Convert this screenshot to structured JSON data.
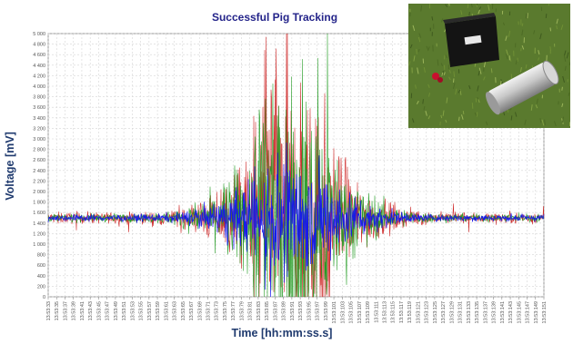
{
  "chart_data": {
    "type": "line",
    "title": "Successful Pig Tracking",
    "xlabel": "Time [hh:mm:ss.s]",
    "ylabel": "Voltage [mV]",
    "ylim": [
      0,
      5000
    ],
    "yticks": [
      0,
      200,
      400,
      600,
      800,
      1000,
      1200,
      1400,
      1600,
      1800,
      2000,
      2200,
      2400,
      2600,
      2800,
      3000,
      3200,
      3400,
      3600,
      3800,
      4000,
      4200,
      4400,
      4600,
      4800,
      5000
    ],
    "ytick_labels": [
      "0",
      "200",
      "400",
      "600",
      "800",
      "1 000",
      "1 200",
      "1 400",
      "1 600",
      "1 800",
      "2 000",
      "2 200",
      "2 400",
      "2 600",
      "2 800",
      "3 000",
      "3 200",
      "3 400",
      "3 600",
      "3 800",
      "4 000",
      "4 200",
      "4 400",
      "4 600",
      "4 800",
      "5 000"
    ],
    "xtick_labels": [
      "13:53:33",
      "13:53:35",
      "13:53:37",
      "13:53:39",
      "13:53:41",
      "13:53:43",
      "13:53:45",
      "13:53:47",
      "13:53:49",
      "13:53:51",
      "13:53:53",
      "13:53:55",
      "13:53:57",
      "13:53:59",
      "13:53:61",
      "13:53:63",
      "13:53:65",
      "13:53:67",
      "13:53:69",
      "13:53:71",
      "13:53:73",
      "13:53:75",
      "13:53:77",
      "13:53:79",
      "13:53:81",
      "13:53:83",
      "13:53:85",
      "13:53:87",
      "13:53:89",
      "13:53:91",
      "13:53:93",
      "13:53:95",
      "13:53:97",
      "13:53:99",
      "13:53:101",
      "13:53:103",
      "13:53:105",
      "13:53:107",
      "13:53:109",
      "13:53:111",
      "13:53:113",
      "13:53:115",
      "13:53:117",
      "13:53:119",
      "13:53:121",
      "13:53:123",
      "13:53:125",
      "13:53:127",
      "13:53:129",
      "13:53:131",
      "13:53:133",
      "13:53:135",
      "13:53:137",
      "13:53:139",
      "13:53:141",
      "13:53:143",
      "13:53:145",
      "13:53:147",
      "13:53:149",
      "13:53:151"
    ],
    "grid": true,
    "baseline": 1500,
    "series": [
      {
        "color": "#cc2222",
        "peak_amplitude": 5000,
        "base_amplitude": 150
      },
      {
        "color": "#1f9a1f",
        "peak_amplitude": 5000,
        "base_amplitude": 110
      },
      {
        "color": "#1414ee",
        "peak_amplitude": 1600,
        "base_amplitude": 90
      }
    ],
    "peak_at": "13:53:91"
  },
  "inset": {
    "description_icon": "photo-receiver-and-transmitter"
  }
}
